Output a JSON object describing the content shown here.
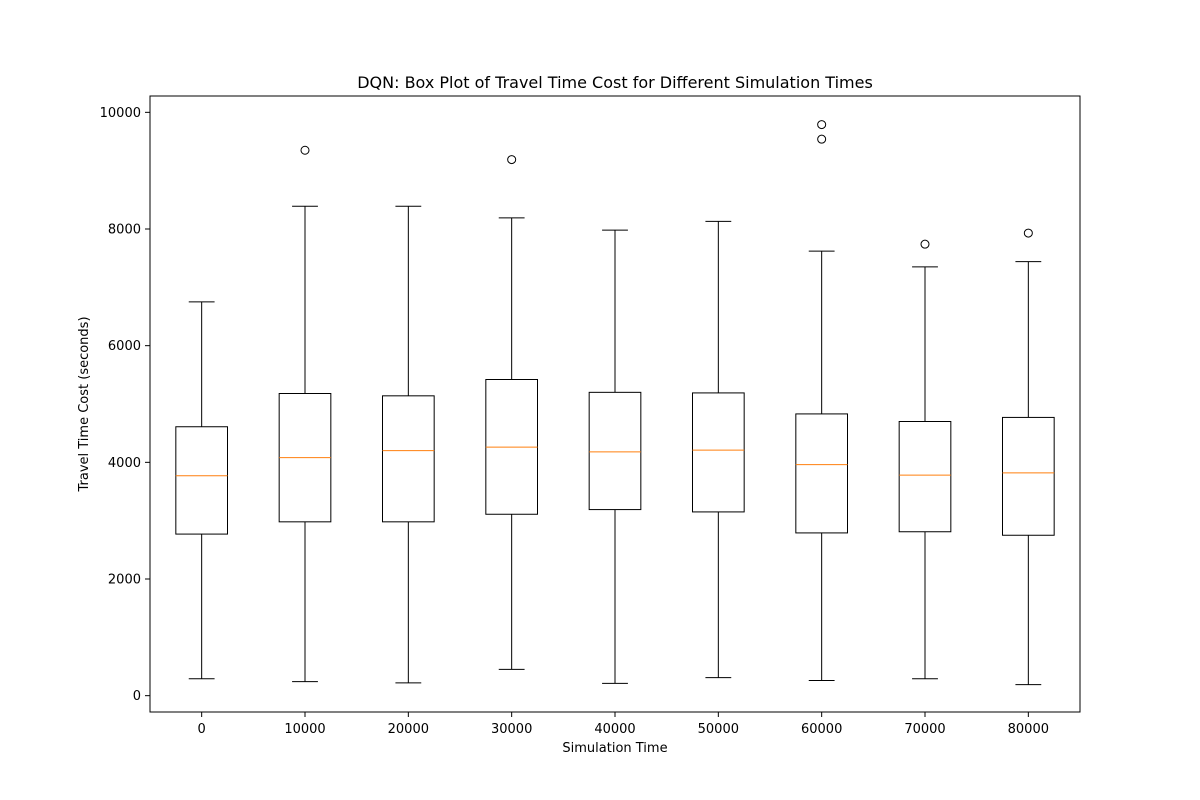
{
  "chart_data": {
    "type": "box",
    "title": "DQN: Box Plot of Travel Time Cost for Different Simulation Times",
    "xlabel": "Simulation Time",
    "ylabel": "Travel Time Cost (seconds)",
    "ylim": [
      -280,
      10280
    ],
    "yticks": [
      0,
      2000,
      4000,
      6000,
      8000,
      10000
    ],
    "grid": false,
    "colors": {
      "box": "#000000",
      "median": "#ff7f0e",
      "flier": "#000000"
    },
    "boxes": [
      {
        "label": "0",
        "whisker_low": 290,
        "q1": 2770,
        "median": 3770,
        "q3": 4610,
        "whisker_high": 6750,
        "fliers": []
      },
      {
        "label": "10000",
        "whisker_low": 240,
        "q1": 2980,
        "median": 4080,
        "q3": 5180,
        "whisker_high": 8390,
        "fliers": [
          9350
        ]
      },
      {
        "label": "20000",
        "whisker_low": 220,
        "q1": 2980,
        "median": 4200,
        "q3": 5140,
        "whisker_high": 8390,
        "fliers": []
      },
      {
        "label": "30000",
        "whisker_low": 450,
        "q1": 3110,
        "median": 4260,
        "q3": 5420,
        "whisker_high": 8190,
        "fliers": [
          9190
        ]
      },
      {
        "label": "40000",
        "whisker_low": 210,
        "q1": 3190,
        "median": 4180,
        "q3": 5200,
        "whisker_high": 7980,
        "fliers": []
      },
      {
        "label": "50000",
        "whisker_low": 310,
        "q1": 3150,
        "median": 4210,
        "q3": 5190,
        "whisker_high": 8130,
        "fliers": []
      },
      {
        "label": "60000",
        "whisker_low": 260,
        "q1": 2790,
        "median": 3960,
        "q3": 4830,
        "whisker_high": 7620,
        "fliers": [
          9540,
          9790
        ]
      },
      {
        "label": "70000",
        "whisker_low": 290,
        "q1": 2810,
        "median": 3780,
        "q3": 4700,
        "whisker_high": 7350,
        "fliers": [
          7740
        ]
      },
      {
        "label": "80000",
        "whisker_low": 190,
        "q1": 2750,
        "median": 3820,
        "q3": 4770,
        "whisker_high": 7440,
        "fliers": [
          7930
        ]
      }
    ]
  }
}
